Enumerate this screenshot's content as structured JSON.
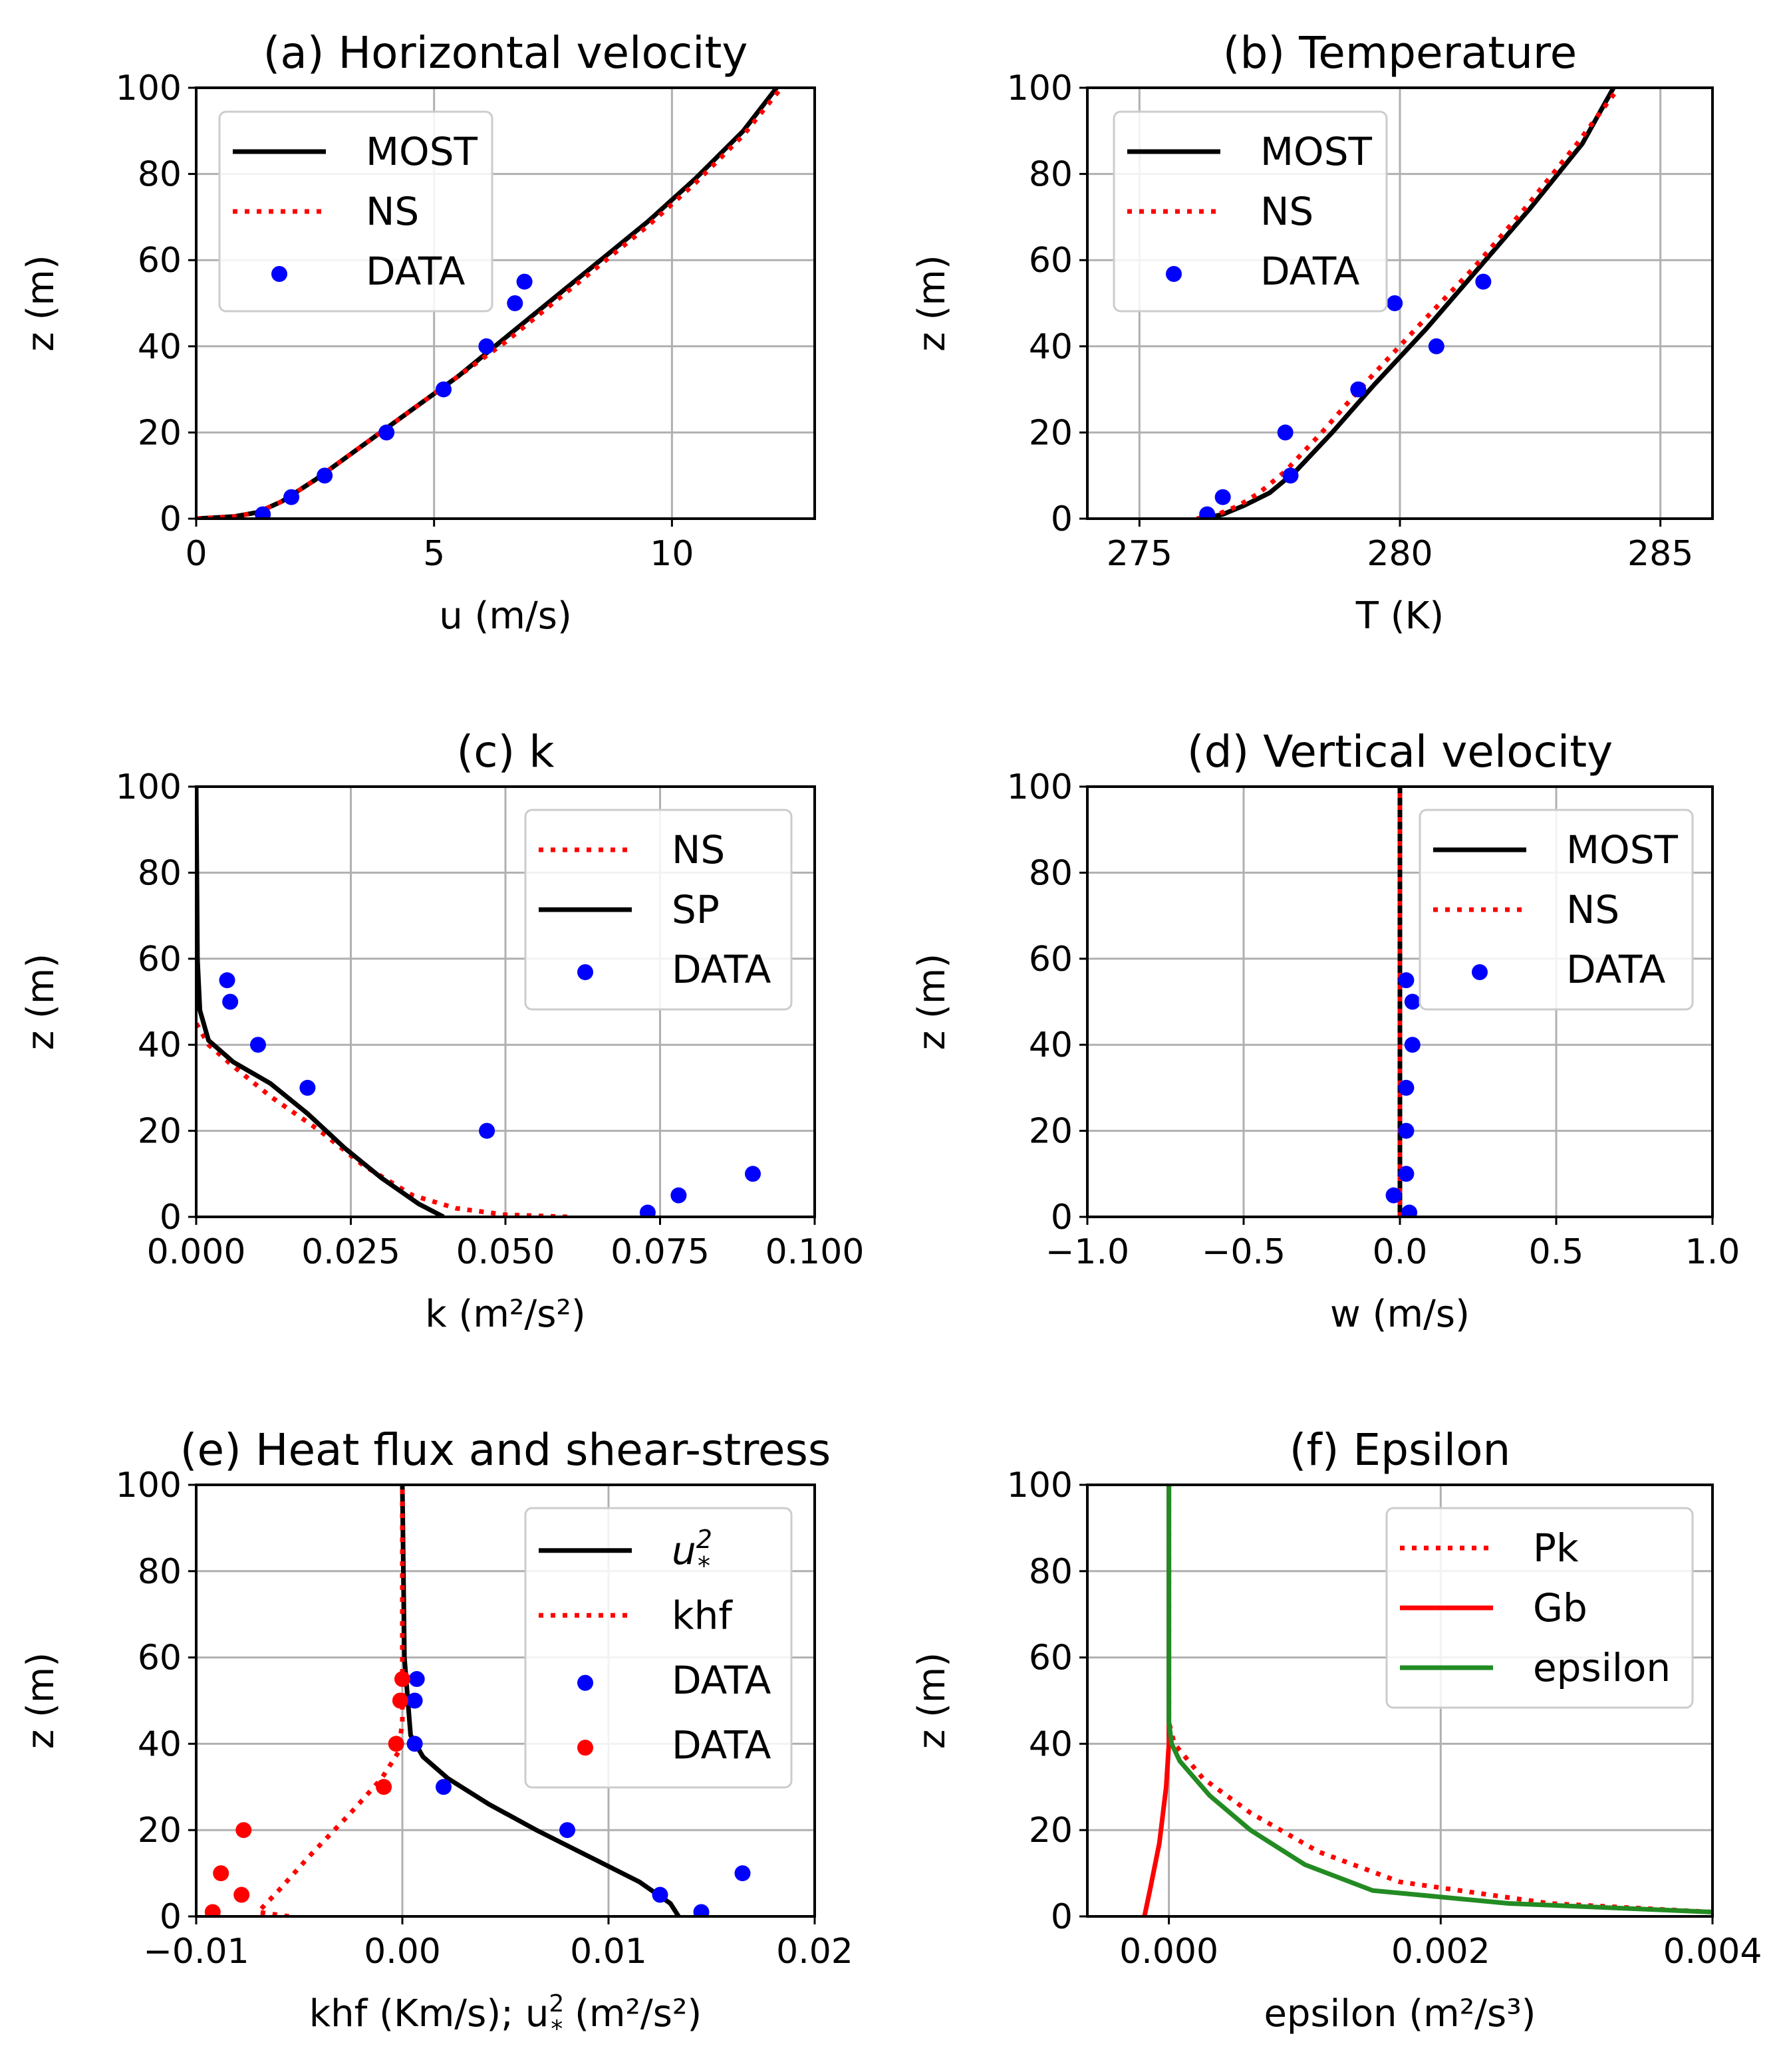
{
  "colors": {
    "black": "#000000",
    "red": "#ff0000",
    "blue": "#0000ff",
    "green": "#228b22",
    "grid": "#b0b0b0"
  },
  "chart_data": [
    {
      "type": "line",
      "title": "(a) Horizontal velocity",
      "xlabel": "u (m/s)",
      "ylabel": "z (m)",
      "xlim": [
        0,
        13
      ],
      "ylim": [
        0,
        100
      ],
      "xticks": [
        0,
        5,
        10
      ],
      "xtick_labels": [
        "0",
        "5",
        "10"
      ],
      "yticks": [
        0,
        20,
        40,
        60,
        80,
        100
      ],
      "ytick_labels": [
        "0",
        "20",
        "40",
        "60",
        "80",
        "100"
      ],
      "grid": true,
      "legend_position": "upper-left",
      "series": [
        {
          "name": "MOST",
          "style": "solid",
          "color": "#000000",
          "x": [
            0,
            0.8,
            1.3,
            1.8,
            2.5,
            3.5,
            4.5,
            5.5,
            6.5,
            7.5,
            8.5,
            9.5,
            10.5,
            11.5,
            12.2
          ],
          "y": [
            0,
            0.5,
            1.5,
            4,
            9,
            17,
            25,
            33,
            42,
            51,
            60,
            69,
            79,
            90,
            100
          ]
        },
        {
          "name": "NS",
          "style": "dotted",
          "color": "#ff0000",
          "x": [
            0,
            0.8,
            1.3,
            1.8,
            2.5,
            3.5,
            4.5,
            5.5,
            6.5,
            7.5,
            8.5,
            9.5,
            10.5,
            11.5,
            12.3
          ],
          "y": [
            0,
            0.5,
            1.5,
            4,
            9,
            17,
            25,
            33,
            41,
            50,
            59,
            68,
            78,
            89,
            100
          ]
        },
        {
          "name": "DATA",
          "style": "marker",
          "color": "#0000ff",
          "x": [
            1.4,
            2,
            2.7,
            4,
            5.2,
            6.1,
            6.7,
            6.9
          ],
          "y": [
            1,
            5,
            10,
            20,
            30,
            40,
            50,
            55
          ]
        }
      ]
    },
    {
      "type": "line",
      "title": "(b) Temperature",
      "xlabel": "T (K)",
      "ylabel": "z (m)",
      "xlim": [
        274,
        286
      ],
      "ylim": [
        0,
        100
      ],
      "xticks": [
        275,
        280,
        285
      ],
      "xtick_labels": [
        "275",
        "280",
        "285"
      ],
      "yticks": [
        0,
        20,
        40,
        60,
        80,
        100
      ],
      "ytick_labels": [
        "0",
        "20",
        "40",
        "60",
        "80",
        "100"
      ],
      "grid": true,
      "legend_position": "upper-left",
      "series": [
        {
          "name": "MOST",
          "style": "solid",
          "color": "#000000",
          "x": [
            276.2,
            276.6,
            277,
            277.5,
            278,
            278.7,
            279.5,
            280.5,
            281.5,
            282.5,
            283.5,
            284.1
          ],
          "y": [
            0,
            1,
            3,
            6,
            11,
            20,
            31,
            44,
            58,
            72,
            87,
            100
          ]
        },
        {
          "name": "NS",
          "style": "dotted",
          "color": "#ff0000",
          "x": [
            276.1,
            276.5,
            276.9,
            277.3,
            277.8,
            278.5,
            279.3,
            280.3,
            281.4,
            282.4,
            283.4,
            284.2
          ],
          "y": [
            0,
            1,
            3,
            6,
            11,
            20,
            31,
            44,
            58,
            72,
            87,
            100
          ]
        },
        {
          "name": "DATA",
          "style": "marker",
          "color": "#0000ff",
          "x": [
            276.3,
            276.6,
            277.9,
            277.8,
            279.2,
            280.7,
            279.9,
            281.6
          ],
          "y": [
            1,
            5,
            10,
            20,
            30,
            40,
            50,
            55
          ]
        }
      ]
    },
    {
      "type": "line",
      "title": "(c) k",
      "xlabel": "k (m²/s²)",
      "ylabel": "z (m)",
      "xlim": [
        0,
        0.1
      ],
      "ylim": [
        0,
        100
      ],
      "xticks": [
        0,
        0.025,
        0.05,
        0.075,
        0.1
      ],
      "xtick_labels": [
        "0.000",
        "0.025",
        "0.050",
        "0.075",
        "0.100"
      ],
      "yticks": [
        0,
        20,
        40,
        60,
        80,
        100
      ],
      "ytick_labels": [
        "0",
        "20",
        "40",
        "60",
        "80",
        "100"
      ],
      "grid": true,
      "legend_position": "upper-right",
      "series": [
        {
          "name": "NS",
          "style": "dotted",
          "color": "#ff0000",
          "x": [
            0.06,
            0.05,
            0.042,
            0.035,
            0.027,
            0.02,
            0.012,
            0.006,
            0.002,
            0
          ],
          "y": [
            0,
            0.5,
            2,
            5,
            12,
            20,
            28,
            35,
            40,
            45
          ]
        },
        {
          "name": "SP",
          "style": "solid",
          "color": "#000000",
          "x": [
            0.04,
            0.036,
            0.03,
            0.024,
            0.018,
            0.012,
            0.006,
            0.002,
            0.0006,
            0.0002,
            0
          ],
          "y": [
            0,
            3,
            9,
            16,
            24,
            31,
            36,
            41,
            48,
            60,
            100
          ]
        },
        {
          "name": "DATA",
          "style": "marker",
          "color": "#0000ff",
          "x": [
            0.073,
            0.078,
            0.09,
            0.047,
            0.018,
            0.01,
            0.0055,
            0.005
          ],
          "y": [
            1,
            5,
            10,
            20,
            30,
            40,
            50,
            55
          ]
        }
      ]
    },
    {
      "type": "line",
      "title": "(d) Vertical velocity",
      "xlabel": "w (m/s)",
      "ylabel": "z (m)",
      "xlim": [
        -1.0,
        1.0
      ],
      "ylim": [
        0,
        100
      ],
      "xticks": [
        -1.0,
        -0.5,
        0.0,
        0.5,
        1.0
      ],
      "xtick_labels": [
        "−1.0",
        "−0.5",
        "0.0",
        "0.5",
        "1.0"
      ],
      "yticks": [
        0,
        20,
        40,
        60,
        80,
        100
      ],
      "ytick_labels": [
        "0",
        "20",
        "40",
        "60",
        "80",
        "100"
      ],
      "grid": true,
      "legend_position": "upper-right",
      "series": [
        {
          "name": "MOST",
          "style": "solid",
          "color": "#000000",
          "x": [
            0,
            0
          ],
          "y": [
            0,
            100
          ]
        },
        {
          "name": "NS",
          "style": "dotted",
          "color": "#ff0000",
          "x": [
            0,
            0
          ],
          "y": [
            0,
            100
          ]
        },
        {
          "name": "DATA",
          "style": "marker",
          "color": "#0000ff",
          "x": [
            0.03,
            -0.02,
            0.02,
            0.02,
            0.02,
            0.04,
            0.04,
            0.02
          ],
          "y": [
            1,
            5,
            10,
            20,
            30,
            40,
            50,
            55
          ]
        }
      ]
    },
    {
      "type": "line",
      "title": "(e) Heat flux and shear-stress",
      "xlabel_main": "khf (Km/s);",
      "xlabel_sym": "u",
      "xlabel_sym_sup": "2",
      "xlabel_sym_sub": "*",
      "xlabel_unit": "(m²/s²)",
      "ylabel": "z (m)",
      "xlim": [
        -0.01,
        0.02
      ],
      "ylim": [
        0,
        100
      ],
      "xticks": [
        -0.01,
        0,
        0.01,
        0.02
      ],
      "xtick_labels": [
        "−0.01",
        "0.00",
        "0.01",
        "0.02"
      ],
      "yticks": [
        0,
        20,
        40,
        60,
        80,
        100
      ],
      "ytick_labels": [
        "0",
        "20",
        "40",
        "60",
        "80",
        "100"
      ],
      "grid": true,
      "legend_position": "upper-right",
      "series": [
        {
          "name": "u*²",
          "style": "solid",
          "color": "#000000",
          "x": [
            0.0134,
            0.013,
            0.0115,
            0.009,
            0.0065,
            0.0042,
            0.0022,
            0.001,
            0.0004,
            0.0001,
            0
          ],
          "y": [
            0,
            3,
            8,
            14,
            20,
            26,
            32,
            37,
            42,
            60,
            100
          ]
        },
        {
          "name": "khf",
          "style": "dotted",
          "color": "#ff0000",
          "x": [
            -0.0055,
            -0.007,
            -0.006,
            -0.0045,
            -0.0025,
            -0.001,
            -0.0002,
            0,
            0
          ],
          "y": [
            0,
            1,
            6,
            14,
            24,
            32,
            38,
            45,
            100
          ]
        },
        {
          "name": "DATA",
          "style": "marker",
          "color": "#0000ff",
          "x": [
            0.0145,
            0.0125,
            0.0165,
            0.008,
            0.002,
            0.0006,
            0.0006,
            0.0007
          ],
          "y": [
            1,
            5,
            10,
            20,
            30,
            40,
            50,
            55
          ]
        },
        {
          "name": "DATA",
          "style": "marker",
          "color": "#ff0000",
          "x": [
            -0.0092,
            -0.0078,
            -0.0088,
            -0.0077,
            -0.0009,
            -0.0003,
            -0.0001,
            0
          ],
          "y": [
            1,
            5,
            10,
            20,
            30,
            40,
            50,
            55
          ]
        }
      ]
    },
    {
      "type": "line",
      "title": "(f) Epsilon",
      "xlabel": "epsilon (m²/s³)",
      "ylabel": "z (m)",
      "xlim": [
        -0.0006,
        0.004
      ],
      "ylim": [
        0,
        100
      ],
      "xticks": [
        0,
        0.002,
        0.004
      ],
      "xtick_labels": [
        "0.000",
        "0.002",
        "0.004"
      ],
      "yticks": [
        0,
        20,
        40,
        60,
        80,
        100
      ],
      "ytick_labels": [
        "0",
        "20",
        "40",
        "60",
        "80",
        "100"
      ],
      "grid": true,
      "legend_position": "upper-right",
      "series": [
        {
          "name": "Pk",
          "style": "dotted",
          "color": "#ff0000",
          "x": [
            0.004,
            0.0028,
            0.0017,
            0.0011,
            0.0006,
            0.00025,
            4e-05,
            0,
            0
          ],
          "y": [
            1,
            3,
            8,
            15,
            24,
            32,
            40,
            45,
            100
          ]
        },
        {
          "name": "Gb",
          "style": "solid",
          "color": "#ff0000",
          "x": [
            -0.00018,
            -0.00014,
            -7e-05,
            -2e-05,
            0,
            0,
            0
          ],
          "y": [
            0,
            6,
            17,
            30,
            40,
            50,
            100
          ]
        },
        {
          "name": "epsilon",
          "style": "solid",
          "color": "#228b22",
          "x": [
            0.004,
            0.0025,
            0.0015,
            0.001,
            0.0006,
            0.0003,
            8e-05,
            2e-05,
            0,
            0
          ],
          "y": [
            1,
            3,
            6,
            12,
            20,
            28,
            36,
            40,
            45,
            100
          ]
        }
      ]
    }
  ]
}
